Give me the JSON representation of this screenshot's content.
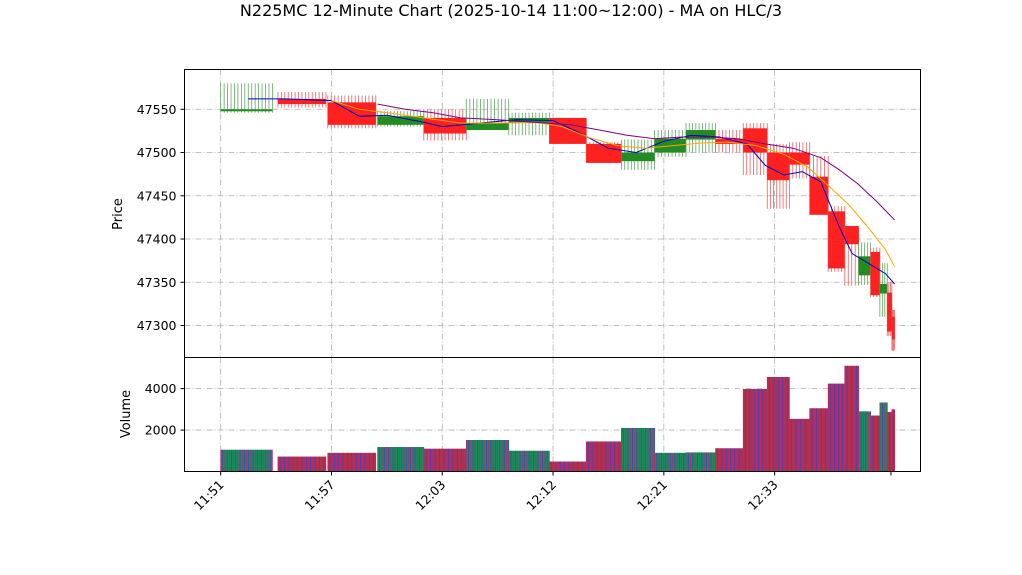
{
  "chart_data": {
    "type": "candlestick",
    "title": "N225MC 12-Minute Chart (2025-10-14 11:00~12:00) - MA on HLC/3",
    "price_axis": {
      "label": "Price",
      "ticks": [
        47300,
        47350,
        47400,
        47450,
        47500,
        47550
      ],
      "ylim": [
        47263,
        47596
      ]
    },
    "volume_axis": {
      "label": "Volume",
      "ticks": [
        2000,
        4000
      ],
      "ylim": [
        0,
        5500
      ]
    },
    "x_tick_labels": [
      "11:51",
      "11:57",
      "12:03",
      "12:12",
      "12:21",
      "12:33"
    ],
    "x_ticks_at": [
      0,
      6,
      12,
      18,
      24,
      30
    ],
    "x_range": [
      -1.96,
      37.9
    ],
    "grid": true,
    "candles": [
      {
        "x": 0,
        "w": 2.8,
        "o": 47550,
        "h": 47580,
        "l": 47546,
        "c": 47550,
        "v": 1050
      },
      {
        "x": 3.1,
        "w": 2.6,
        "o": 47562,
        "h": 47570,
        "l": 47552,
        "c": 47556,
        "v": 720
      },
      {
        "x": 5.8,
        "w": 2.6,
        "o": 47558,
        "h": 47566,
        "l": 47528,
        "c": 47532,
        "v": 900
      },
      {
        "x": 8.5,
        "w": 2.5,
        "o": 47532,
        "h": 47548,
        "l": 47530,
        "c": 47542,
        "v": 1180
      },
      {
        "x": 11.0,
        "w": 2.3,
        "o": 47540,
        "h": 47550,
        "l": 47514,
        "c": 47522,
        "v": 1100
      },
      {
        "x": 13.3,
        "w": 2.3,
        "o": 47526,
        "h": 47562,
        "l": 47526,
        "c": 47534,
        "v": 1520
      },
      {
        "x": 15.6,
        "w": 2.2,
        "o": 47534,
        "h": 47546,
        "l": 47520,
        "c": 47540,
        "v": 1000
      },
      {
        "x": 17.8,
        "w": 2.0,
        "o": 47540,
        "h": 47540,
        "l": 47510,
        "c": 47510,
        "v": 480
      },
      {
        "x": 19.8,
        "w": 1.9,
        "o": 47510,
        "h": 47512,
        "l": 47488,
        "c": 47488,
        "v": 1450
      },
      {
        "x": 21.7,
        "w": 1.8,
        "o": 47490,
        "h": 47515,
        "l": 47480,
        "c": 47500,
        "v": 2100
      },
      {
        "x": 23.5,
        "w": 1.7,
        "o": 47500,
        "h": 47526,
        "l": 47495,
        "c": 47516,
        "v": 900
      },
      {
        "x": 25.2,
        "w": 1.6,
        "o": 47515,
        "h": 47534,
        "l": 47500,
        "c": 47526,
        "v": 920
      },
      {
        "x": 26.8,
        "w": 1.5,
        "o": 47516,
        "h": 47526,
        "l": 47500,
        "c": 47510,
        "v": 1120
      },
      {
        "x": 28.3,
        "w": 1.3,
        "o": 47528,
        "h": 47534,
        "l": 47474,
        "c": 47500,
        "v": 3980
      },
      {
        "x": 29.6,
        "w": 1.2,
        "o": 47500,
        "h": 47510,
        "l": 47435,
        "c": 47468,
        "v": 4560
      },
      {
        "x": 30.8,
        "w": 1.1,
        "o": 47500,
        "h": 47512,
        "l": 47470,
        "c": 47486,
        "v": 2540
      },
      {
        "x": 31.9,
        "w": 1.0,
        "o": 47472,
        "h": 47496,
        "l": 47428,
        "c": 47428,
        "v": 3050
      },
      {
        "x": 32.9,
        "w": 0.9,
        "o": 47432,
        "h": 47438,
        "l": 47362,
        "c": 47366,
        "v": 4240
      },
      {
        "x": 33.8,
        "w": 0.75,
        "o": 47415,
        "h": 47414,
        "l": 47346,
        "c": 47394,
        "v": 5100
      },
      {
        "x": 34.55,
        "w": 0.65,
        "o": 47358,
        "h": 47396,
        "l": 47347,
        "c": 47380,
        "v": 2900
      },
      {
        "x": 35.2,
        "w": 0.5,
        "o": 47385,
        "h": 47390,
        "l": 47333,
        "c": 47335,
        "v": 2700
      },
      {
        "x": 35.7,
        "w": 0.4,
        "o": 47337,
        "h": 47372,
        "l": 47310,
        "c": 47348,
        "v": 3330
      },
      {
        "x": 36.1,
        "w": 0.25,
        "o": 47338,
        "h": 47350,
        "l": 47288,
        "c": 47293,
        "v": 2870
      },
      {
        "x": 36.35,
        "w": 0.15,
        "o": 47310,
        "h": 47318,
        "l": 47271,
        "c": 47284,
        "v": 3000
      }
    ],
    "ma_lines": [
      {
        "color": "#0000cc",
        "points": [
          [
            1.5,
            47562
          ],
          [
            3.5,
            47562
          ],
          [
            6,
            47560
          ],
          [
            7.5,
            47542
          ],
          [
            9,
            47543
          ],
          [
            11,
            47535
          ],
          [
            12,
            47530
          ],
          [
            14,
            47534
          ],
          [
            16,
            47538
          ],
          [
            18,
            47537
          ],
          [
            19.5,
            47522
          ],
          [
            21,
            47505
          ],
          [
            22.5,
            47500
          ],
          [
            24,
            47513
          ],
          [
            25.5,
            47520
          ],
          [
            27,
            47518
          ],
          [
            28.5,
            47510
          ],
          [
            29.5,
            47485
          ],
          [
            30.5,
            47474
          ],
          [
            31.5,
            47478
          ],
          [
            32.5,
            47466
          ],
          [
            33.5,
            47414
          ],
          [
            34.2,
            47383
          ],
          [
            35,
            47373
          ],
          [
            36,
            47360
          ],
          [
            36.5,
            47348
          ]
        ]
      },
      {
        "color": "#ffa500",
        "points": [
          [
            6,
            47560
          ],
          [
            7.5,
            47550
          ],
          [
            9,
            47546
          ],
          [
            11,
            47540
          ],
          [
            13,
            47534
          ],
          [
            15,
            47534
          ],
          [
            17,
            47535
          ],
          [
            18.5,
            47530
          ],
          [
            20,
            47517
          ],
          [
            21.5,
            47508
          ],
          [
            23,
            47505
          ],
          [
            24.5,
            47508
          ],
          [
            26,
            47511
          ],
          [
            27.5,
            47512
          ],
          [
            29,
            47508
          ],
          [
            30.5,
            47498
          ],
          [
            31.8,
            47483
          ],
          [
            33,
            47460
          ],
          [
            34,
            47440
          ],
          [
            35,
            47415
          ],
          [
            36,
            47388
          ],
          [
            36.5,
            47368
          ]
        ]
      },
      {
        "color": "#800080",
        "points": [
          [
            8.5,
            47556
          ],
          [
            10,
            47550
          ],
          [
            11.5,
            47546
          ],
          [
            13,
            47540
          ],
          [
            15,
            47538
          ],
          [
            17,
            47535
          ],
          [
            19,
            47532
          ],
          [
            20.5,
            47526
          ],
          [
            22,
            47520
          ],
          [
            23.5,
            47516
          ],
          [
            25,
            47518
          ],
          [
            26.5,
            47518
          ],
          [
            28,
            47516
          ],
          [
            29.5,
            47510
          ],
          [
            31,
            47505
          ],
          [
            32.5,
            47494
          ],
          [
            33.5,
            47480
          ],
          [
            34.5,
            47464
          ],
          [
            35.5,
            47444
          ],
          [
            36.5,
            47422
          ]
        ]
      }
    ]
  }
}
